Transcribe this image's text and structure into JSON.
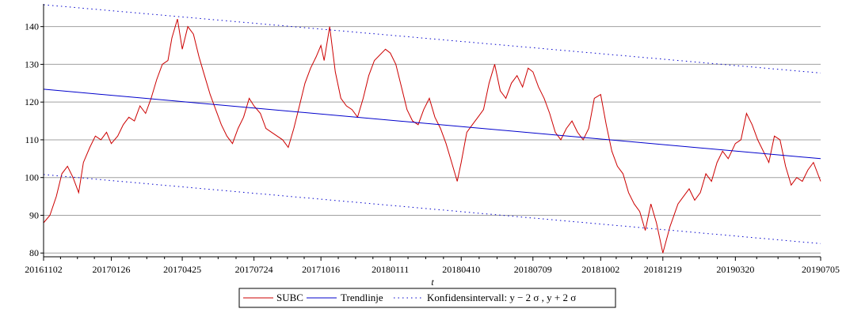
{
  "chart_data": {
    "type": "line",
    "title": "",
    "xlabel": "t",
    "ylabel": "",
    "ylim": [
      79,
      146
    ],
    "grid": "horizontal",
    "legend_placement": "bottom-center",
    "y_ticks": [
      80,
      90,
      100,
      110,
      120,
      130,
      140
    ],
    "x_ticks": [
      "20161102",
      "20170126",
      "20170425",
      "20170724",
      "20171016",
      "20180111",
      "20180410",
      "20180709",
      "20181002",
      "20181219",
      "20190320",
      "20190705"
    ],
    "x_range": [
      "20161102",
      "20190705"
    ],
    "series": [
      {
        "name": "SUBC",
        "style": "solid",
        "color": "#cc0000",
        "points": [
          [
            "20161102",
            88
          ],
          [
            "20161110",
            90
          ],
          [
            "20161118",
            95
          ],
          [
            "20161125",
            101
          ],
          [
            "20161202",
            103
          ],
          [
            "20161209",
            100
          ],
          [
            "20161216",
            96
          ],
          [
            "20161222",
            104
          ],
          [
            "20161230",
            108
          ],
          [
            "20170106",
            111
          ],
          [
            "20170113",
            110
          ],
          [
            "20170120",
            112
          ],
          [
            "20170126",
            109
          ],
          [
            "20170203",
            111
          ],
          [
            "20170210",
            114
          ],
          [
            "20170217",
            116
          ],
          [
            "20170224",
            115
          ],
          [
            "20170303",
            119
          ],
          [
            "20170310",
            117
          ],
          [
            "20170317",
            121
          ],
          [
            "20170324",
            126
          ],
          [
            "20170331",
            130
          ],
          [
            "20170407",
            131
          ],
          [
            "20170412",
            137
          ],
          [
            "20170419",
            142
          ],
          [
            "20170425",
            134
          ],
          [
            "20170502",
            140
          ],
          [
            "20170509",
            138
          ],
          [
            "20170516",
            132
          ],
          [
            "20170523",
            127
          ],
          [
            "20170530",
            122
          ],
          [
            "20170606",
            118
          ],
          [
            "20170613",
            114
          ],
          [
            "20170620",
            111
          ],
          [
            "20170627",
            109
          ],
          [
            "20170704",
            113
          ],
          [
            "20170711",
            116
          ],
          [
            "20170718",
            121
          ],
          [
            "20170724",
            119
          ],
          [
            "20170801",
            117
          ],
          [
            "20170808",
            113
          ],
          [
            "20170815",
            112
          ],
          [
            "20170822",
            111
          ],
          [
            "20170829",
            110
          ],
          [
            "20170905",
            108
          ],
          [
            "20170912",
            113
          ],
          [
            "20170919",
            119
          ],
          [
            "20170926",
            125
          ],
          [
            "20171003",
            129
          ],
          [
            "20171010",
            132
          ],
          [
            "20171016",
            135
          ],
          [
            "20171020",
            131
          ],
          [
            "20171027",
            140
          ],
          [
            "20171103",
            128
          ],
          [
            "20171110",
            121
          ],
          [
            "20171117",
            119
          ],
          [
            "20171124",
            118
          ],
          [
            "20171201",
            116
          ],
          [
            "20171208",
            121
          ],
          [
            "20171215",
            127
          ],
          [
            "20171222",
            131
          ],
          [
            "20180105",
            134
          ],
          [
            "20180111",
            133
          ],
          [
            "20180118",
            130
          ],
          [
            "20180125",
            124
          ],
          [
            "20180201",
            118
          ],
          [
            "20180208",
            115
          ],
          [
            "20180215",
            114
          ],
          [
            "20180222",
            118
          ],
          [
            "20180301",
            121
          ],
          [
            "20180308",
            116
          ],
          [
            "20180315",
            113
          ],
          [
            "20180322",
            109
          ],
          [
            "20180329",
            104
          ],
          [
            "20180405",
            99
          ],
          [
            "20180410",
            104
          ],
          [
            "20180417",
            112
          ],
          [
            "20180424",
            114
          ],
          [
            "20180501",
            116
          ],
          [
            "20180508",
            118
          ],
          [
            "20180515",
            125
          ],
          [
            "20180522",
            130
          ],
          [
            "20180529",
            123
          ],
          [
            "20180605",
            121
          ],
          [
            "20180612",
            125
          ],
          [
            "20180619",
            127
          ],
          [
            "20180626",
            124
          ],
          [
            "20180703",
            129
          ],
          [
            "20180709",
            128
          ],
          [
            "20180716",
            124
          ],
          [
            "20180723",
            121
          ],
          [
            "20180730",
            117
          ],
          [
            "20180806",
            112
          ],
          [
            "20180813",
            110
          ],
          [
            "20180820",
            113
          ],
          [
            "20180827",
            115
          ],
          [
            "20180903",
            112
          ],
          [
            "20180910",
            110
          ],
          [
            "20180917",
            113
          ],
          [
            "20180924",
            121
          ],
          [
            "20181002",
            122
          ],
          [
            "20181009",
            114
          ],
          [
            "20181016",
            107
          ],
          [
            "20181023",
            103
          ],
          [
            "20181030",
            101
          ],
          [
            "20181106",
            96
          ],
          [
            "20181113",
            93
          ],
          [
            "20181120",
            91
          ],
          [
            "20181127",
            86
          ],
          [
            "20181204",
            93
          ],
          [
            "20181211",
            88
          ],
          [
            "20181219",
            80
          ],
          [
            "20181228",
            87
          ],
          [
            "20190107",
            93
          ],
          [
            "20190114",
            95
          ],
          [
            "20190121",
            97
          ],
          [
            "20190128",
            94
          ],
          [
            "20190204",
            96
          ],
          [
            "20190211",
            101
          ],
          [
            "20190218",
            99
          ],
          [
            "20190225",
            104
          ],
          [
            "20190304",
            107
          ],
          [
            "20190311",
            105
          ],
          [
            "20190320",
            109
          ],
          [
            "20190327",
            110
          ],
          [
            "20190403",
            117
          ],
          [
            "20190410",
            114
          ],
          [
            "20190417",
            110
          ],
          [
            "20190424",
            107
          ],
          [
            "20190501",
            104
          ],
          [
            "20190508",
            111
          ],
          [
            "20190515",
            110
          ],
          [
            "20190522",
            103
          ],
          [
            "20190529",
            98
          ],
          [
            "20190605",
            100
          ],
          [
            "20190612",
            99
          ],
          [
            "20190619",
            102
          ],
          [
            "20190626",
            104
          ],
          [
            "20190705",
            99
          ]
        ]
      },
      {
        "name": "Trendlinje",
        "style": "solid",
        "color": "#0000cc",
        "points": [
          [
            "20161102",
            123.4
          ],
          [
            "20190705",
            105.0
          ]
        ]
      },
      {
        "name": "Konfidensintervall: y − 2 σ , y + 2 σ",
        "style": "dotted",
        "color": "#0000cc",
        "segments": [
          [
            [
              "20161102",
              145.8
            ],
            [
              "20190705",
              127.7
            ]
          ],
          [
            [
              "20161102",
              100.8
            ],
            [
              "20190705",
              82.5
            ]
          ]
        ]
      }
    ]
  }
}
